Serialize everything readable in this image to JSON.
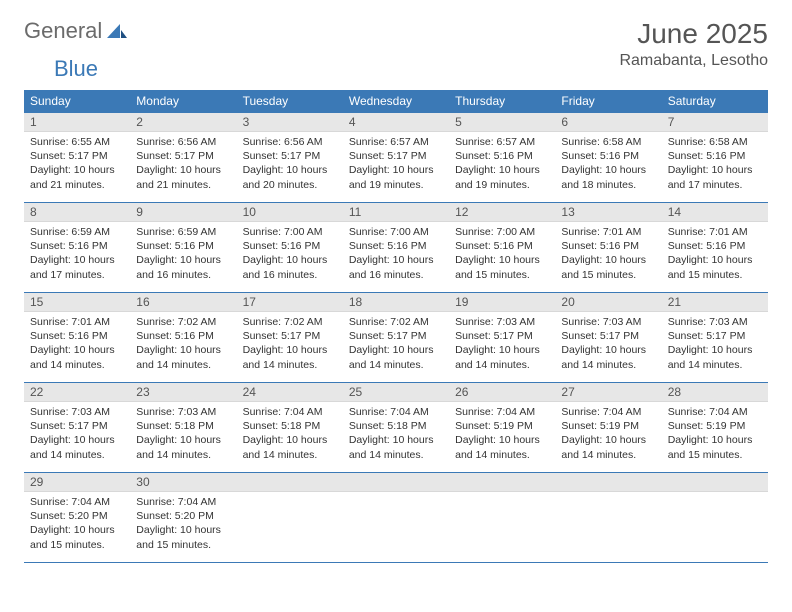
{
  "brand": {
    "text1": "General",
    "text2": "Blue"
  },
  "title": "June 2025",
  "location": "Ramabanta, Lesotho",
  "colors": {
    "header_bg": "#3b79b6",
    "header_text": "#ffffff",
    "daynum_bg": "#e7e7e7",
    "row_border": "#3b79b6",
    "brand_gray": "#6b6b6b",
    "brand_blue": "#3b79b6"
  },
  "daysOfWeek": [
    "Sunday",
    "Monday",
    "Tuesday",
    "Wednesday",
    "Thursday",
    "Friday",
    "Saturday"
  ],
  "weeks": [
    [
      {
        "n": "1",
        "sr": "Sunrise: 6:55 AM",
        "ss": "Sunset: 5:17 PM",
        "dl1": "Daylight: 10 hours",
        "dl2": "and 21 minutes."
      },
      {
        "n": "2",
        "sr": "Sunrise: 6:56 AM",
        "ss": "Sunset: 5:17 PM",
        "dl1": "Daylight: 10 hours",
        "dl2": "and 21 minutes."
      },
      {
        "n": "3",
        "sr": "Sunrise: 6:56 AM",
        "ss": "Sunset: 5:17 PM",
        "dl1": "Daylight: 10 hours",
        "dl2": "and 20 minutes."
      },
      {
        "n": "4",
        "sr": "Sunrise: 6:57 AM",
        "ss": "Sunset: 5:17 PM",
        "dl1": "Daylight: 10 hours",
        "dl2": "and 19 minutes."
      },
      {
        "n": "5",
        "sr": "Sunrise: 6:57 AM",
        "ss": "Sunset: 5:16 PM",
        "dl1": "Daylight: 10 hours",
        "dl2": "and 19 minutes."
      },
      {
        "n": "6",
        "sr": "Sunrise: 6:58 AM",
        "ss": "Sunset: 5:16 PM",
        "dl1": "Daylight: 10 hours",
        "dl2": "and 18 minutes."
      },
      {
        "n": "7",
        "sr": "Sunrise: 6:58 AM",
        "ss": "Sunset: 5:16 PM",
        "dl1": "Daylight: 10 hours",
        "dl2": "and 17 minutes."
      }
    ],
    [
      {
        "n": "8",
        "sr": "Sunrise: 6:59 AM",
        "ss": "Sunset: 5:16 PM",
        "dl1": "Daylight: 10 hours",
        "dl2": "and 17 minutes."
      },
      {
        "n": "9",
        "sr": "Sunrise: 6:59 AM",
        "ss": "Sunset: 5:16 PM",
        "dl1": "Daylight: 10 hours",
        "dl2": "and 16 minutes."
      },
      {
        "n": "10",
        "sr": "Sunrise: 7:00 AM",
        "ss": "Sunset: 5:16 PM",
        "dl1": "Daylight: 10 hours",
        "dl2": "and 16 minutes."
      },
      {
        "n": "11",
        "sr": "Sunrise: 7:00 AM",
        "ss": "Sunset: 5:16 PM",
        "dl1": "Daylight: 10 hours",
        "dl2": "and 16 minutes."
      },
      {
        "n": "12",
        "sr": "Sunrise: 7:00 AM",
        "ss": "Sunset: 5:16 PM",
        "dl1": "Daylight: 10 hours",
        "dl2": "and 15 minutes."
      },
      {
        "n": "13",
        "sr": "Sunrise: 7:01 AM",
        "ss": "Sunset: 5:16 PM",
        "dl1": "Daylight: 10 hours",
        "dl2": "and 15 minutes."
      },
      {
        "n": "14",
        "sr": "Sunrise: 7:01 AM",
        "ss": "Sunset: 5:16 PM",
        "dl1": "Daylight: 10 hours",
        "dl2": "and 15 minutes."
      }
    ],
    [
      {
        "n": "15",
        "sr": "Sunrise: 7:01 AM",
        "ss": "Sunset: 5:16 PM",
        "dl1": "Daylight: 10 hours",
        "dl2": "and 14 minutes."
      },
      {
        "n": "16",
        "sr": "Sunrise: 7:02 AM",
        "ss": "Sunset: 5:16 PM",
        "dl1": "Daylight: 10 hours",
        "dl2": "and 14 minutes."
      },
      {
        "n": "17",
        "sr": "Sunrise: 7:02 AM",
        "ss": "Sunset: 5:17 PM",
        "dl1": "Daylight: 10 hours",
        "dl2": "and 14 minutes."
      },
      {
        "n": "18",
        "sr": "Sunrise: 7:02 AM",
        "ss": "Sunset: 5:17 PM",
        "dl1": "Daylight: 10 hours",
        "dl2": "and 14 minutes."
      },
      {
        "n": "19",
        "sr": "Sunrise: 7:03 AM",
        "ss": "Sunset: 5:17 PM",
        "dl1": "Daylight: 10 hours",
        "dl2": "and 14 minutes."
      },
      {
        "n": "20",
        "sr": "Sunrise: 7:03 AM",
        "ss": "Sunset: 5:17 PM",
        "dl1": "Daylight: 10 hours",
        "dl2": "and 14 minutes."
      },
      {
        "n": "21",
        "sr": "Sunrise: 7:03 AM",
        "ss": "Sunset: 5:17 PM",
        "dl1": "Daylight: 10 hours",
        "dl2": "and 14 minutes."
      }
    ],
    [
      {
        "n": "22",
        "sr": "Sunrise: 7:03 AM",
        "ss": "Sunset: 5:17 PM",
        "dl1": "Daylight: 10 hours",
        "dl2": "and 14 minutes."
      },
      {
        "n": "23",
        "sr": "Sunrise: 7:03 AM",
        "ss": "Sunset: 5:18 PM",
        "dl1": "Daylight: 10 hours",
        "dl2": "and 14 minutes."
      },
      {
        "n": "24",
        "sr": "Sunrise: 7:04 AM",
        "ss": "Sunset: 5:18 PM",
        "dl1": "Daylight: 10 hours",
        "dl2": "and 14 minutes."
      },
      {
        "n": "25",
        "sr": "Sunrise: 7:04 AM",
        "ss": "Sunset: 5:18 PM",
        "dl1": "Daylight: 10 hours",
        "dl2": "and 14 minutes."
      },
      {
        "n": "26",
        "sr": "Sunrise: 7:04 AM",
        "ss": "Sunset: 5:19 PM",
        "dl1": "Daylight: 10 hours",
        "dl2": "and 14 minutes."
      },
      {
        "n": "27",
        "sr": "Sunrise: 7:04 AM",
        "ss": "Sunset: 5:19 PM",
        "dl1": "Daylight: 10 hours",
        "dl2": "and 14 minutes."
      },
      {
        "n": "28",
        "sr": "Sunrise: 7:04 AM",
        "ss": "Sunset: 5:19 PM",
        "dl1": "Daylight: 10 hours",
        "dl2": "and 15 minutes."
      }
    ],
    [
      {
        "n": "29",
        "sr": "Sunrise: 7:04 AM",
        "ss": "Sunset: 5:20 PM",
        "dl1": "Daylight: 10 hours",
        "dl2": "and 15 minutes."
      },
      {
        "n": "30",
        "sr": "Sunrise: 7:04 AM",
        "ss": "Sunset: 5:20 PM",
        "dl1": "Daylight: 10 hours",
        "dl2": "and 15 minutes."
      },
      null,
      null,
      null,
      null,
      null
    ]
  ]
}
